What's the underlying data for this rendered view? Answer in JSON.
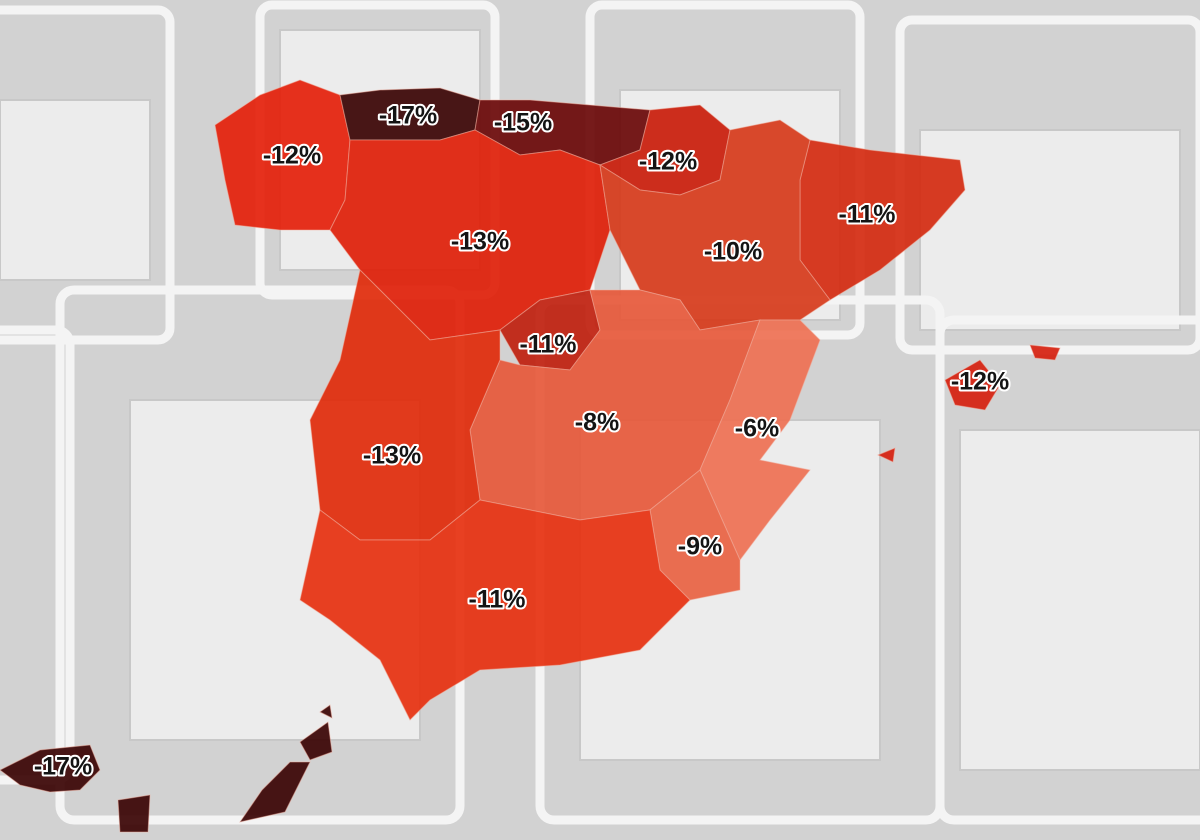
{
  "map": {
    "regions": [
      {
        "label": "-12%",
        "color": "#e4200a"
      },
      {
        "label": "-17%",
        "color": "#3a0303"
      },
      {
        "label": "-15%",
        "color": "#6a0808"
      },
      {
        "label": "-12%",
        "color": "#c91c0a"
      },
      {
        "label": "-11%",
        "color": "#d42a10"
      },
      {
        "label": "-13%",
        "color": "#de1e08"
      },
      {
        "label": "-10%",
        "color": "#d63a1a"
      },
      {
        "label": "-11%",
        "color": "#bf200e"
      },
      {
        "label": "-8%",
        "color": "#e6583a"
      },
      {
        "label": "-6%",
        "color": "#ee7052"
      },
      {
        "label": "-13%",
        "color": "#e02a0a"
      },
      {
        "label": "-9%",
        "color": "#e86242"
      },
      {
        "label": "-11%",
        "color": "#e6300f"
      },
      {
        "label": "-12%",
        "color": "#d5200e"
      },
      {
        "label": "-17%",
        "color": "#3a0303"
      }
    ]
  }
}
